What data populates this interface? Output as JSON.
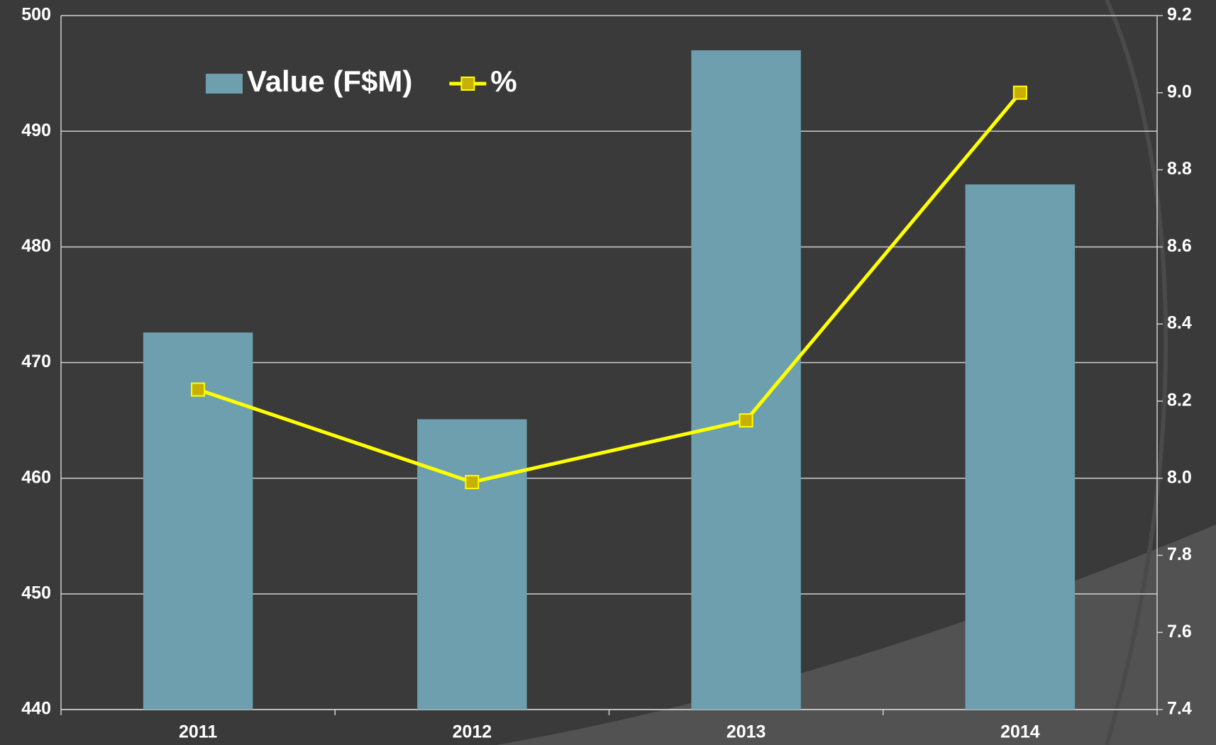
{
  "chart_data": {
    "type": "bar-line",
    "categories": [
      "2011",
      "2012",
      "2013",
      "2014"
    ],
    "series": [
      {
        "name": "Value (F$M)",
        "type": "bar",
        "color": "#6e9fae",
        "values": [
          472.6,
          465.1,
          497.0,
          485.4
        ]
      },
      {
        "name": "%",
        "type": "line",
        "color": "#ffff00",
        "marker_color": "#c8b000",
        "axis": "y2",
        "values": [
          8.23,
          7.99,
          8.15,
          9.0
        ]
      }
    ],
    "ylim": [
      440,
      500
    ],
    "yticks": [
      440,
      450,
      460,
      470,
      480,
      490,
      500
    ],
    "y2lim": [
      7.4,
      9.2
    ],
    "y2ticks": [
      7.4,
      7.6,
      7.8,
      {
        "value": 8,
        "label": "8.0"
      },
      8.2,
      8.4,
      8.6,
      8.8,
      {
        "value": 9,
        "label": "9.0"
      },
      9.2
    ],
    "grid": true,
    "legend": "top"
  }
}
